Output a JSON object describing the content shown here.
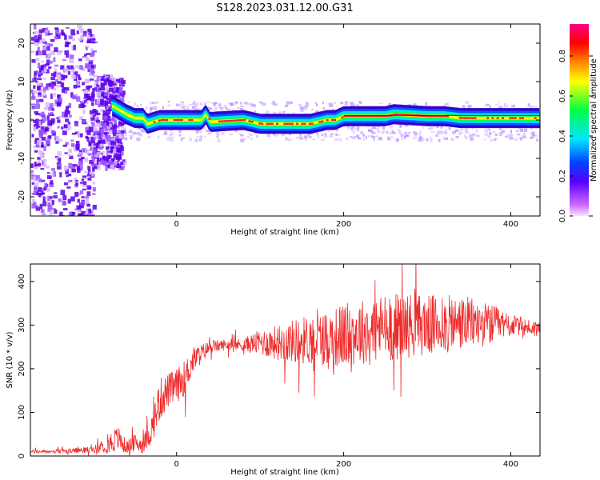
{
  "title": "S128.2023.031.12.00.G31",
  "colors": {
    "line": "#ee2a2a",
    "colorbar": [
      "#cc66ff",
      "#5500ff",
      "#0044ff",
      "#00e5ff",
      "#00ff44",
      "#ffff00",
      "#ff8800",
      "#ff0000",
      "#ff0088"
    ]
  },
  "chart_data": [
    {
      "type": "heatmap",
      "title": "",
      "xlabel": "Height of straight line (km)",
      "ylabel": "Frequency (Hz)",
      "xlim": [
        -175,
        435
      ],
      "ylim": [
        -25,
        25
      ],
      "xticks": [
        0,
        200,
        400
      ],
      "yticks": [
        -20,
        -10,
        0,
        10,
        20
      ],
      "colorbar": {
        "label": "Normalized spectral amplitude",
        "ticks": [
          0.0,
          0.2,
          0.4,
          0.6,
          0.8
        ],
        "range": [
          0,
          0.96
        ]
      },
      "ridge": {
        "x": [
          -75,
          -60,
          -50,
          -40,
          -35,
          -20,
          0,
          20,
          30,
          35,
          40,
          80,
          100,
          120,
          140,
          160,
          180,
          190,
          200,
          220,
          250,
          260,
          300,
          320,
          340,
          380,
          400,
          435
        ],
        "freq": [
          3.5,
          1.5,
          0.5,
          0.5,
          -1,
          0,
          0,
          0,
          0,
          1.5,
          -0.5,
          0,
          -1,
          -1,
          -1,
          -1,
          0,
          0,
          1,
          1,
          1,
          1.5,
          1,
          1,
          0.5,
          0.5,
          0.5,
          0.5
        ]
      }
    },
    {
      "type": "line",
      "title": "",
      "xlabel": "Height of straight line (km)",
      "ylabel": "SNR (10 * v/v)",
      "xlim": [
        -175,
        435
      ],
      "ylim": [
        0,
        440
      ],
      "xticks": [
        0,
        200,
        400
      ],
      "yticks": [
        0,
        100,
        200,
        300,
        400
      ],
      "series": [
        {
          "x": [
            -175,
            -150,
            -120,
            -100,
            -90,
            -80,
            -70,
            -60,
            -50,
            -40,
            -30,
            -20,
            -10,
            0,
            10,
            20,
            40,
            60,
            80,
            100,
            120,
            150,
            180,
            200,
            220,
            250,
            280,
            300,
            320,
            350,
            380,
            400,
            420,
            435
          ],
          "mean": [
            10,
            10,
            12,
            15,
            20,
            30,
            40,
            20,
            30,
            25,
            60,
            130,
            150,
            160,
            180,
            220,
            250,
            255,
            255,
            260,
            260,
            265,
            270,
            275,
            285,
            295,
            300,
            300,
            300,
            305,
            300,
            300,
            295,
            290
          ],
          "amp": [
            4,
            4,
            6,
            8,
            12,
            25,
            30,
            15,
            20,
            20,
            35,
            50,
            40,
            40,
            40,
            30,
            15,
            12,
            15,
            30,
            40,
            55,
            65,
            75,
            75,
            80,
            75,
            70,
            70,
            60,
            45,
            25,
            20,
            20
          ]
        }
      ]
    }
  ]
}
